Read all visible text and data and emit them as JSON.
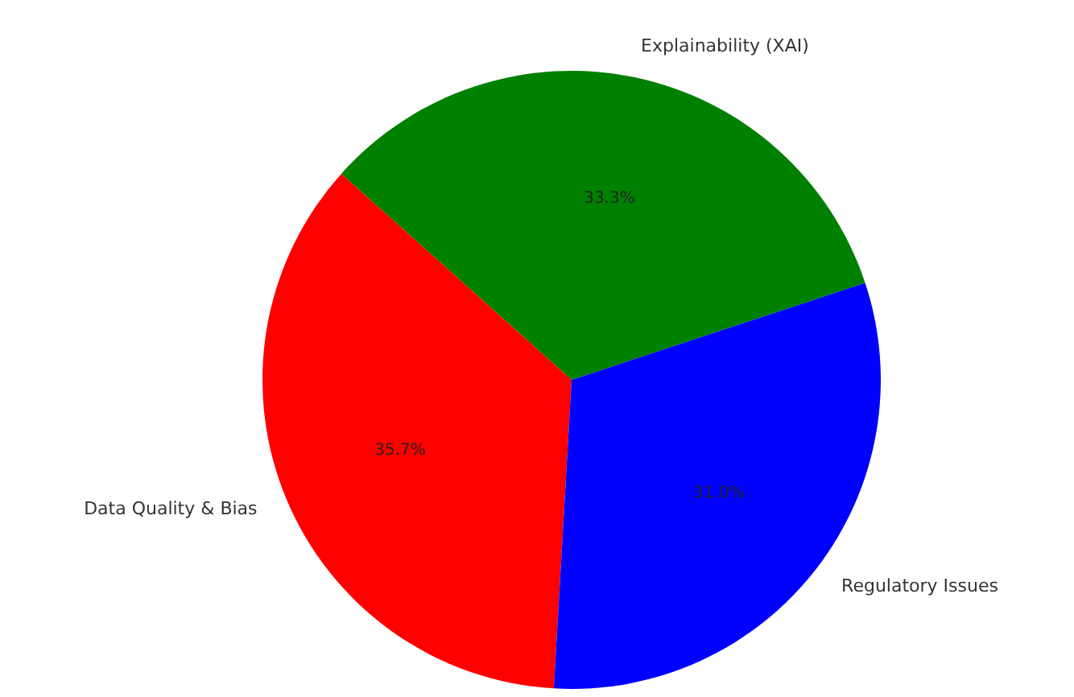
{
  "chart_data": {
    "type": "pie",
    "categories": [
      "Explainability (XAI)",
      "Data Quality & Bias",
      "Regulatory Issues"
    ],
    "values": [
      33.3,
      35.7,
      31.0
    ],
    "colors": [
      "#008000",
      "#ff0000",
      "#0000ff"
    ],
    "value_labels": [
      "33.3%",
      "35.7%",
      "31.0%"
    ]
  }
}
